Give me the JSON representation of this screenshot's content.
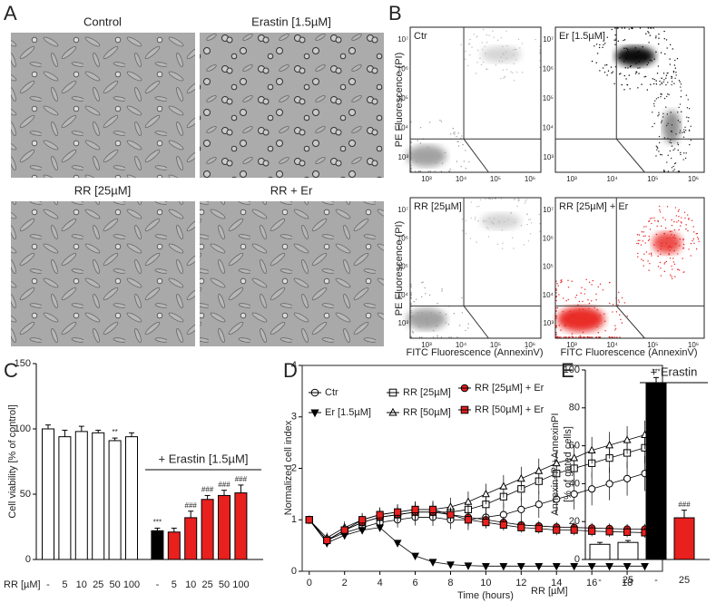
{
  "figure": {
    "panel_letters": [
      "A",
      "B",
      "C",
      "D",
      "E"
    ],
    "images": [
      {
        "title": "Control"
      },
      {
        "title": "Erastin [1.5µM]"
      },
      {
        "title": "RR [25µM]"
      },
      {
        "title": "RR + Er"
      }
    ],
    "flow": {
      "plots": [
        {
          "label": "Ctr"
        },
        {
          "label": "Er [1.5µM]"
        },
        {
          "label": "RR [25µM]"
        },
        {
          "label": "RR [25µM] + Er"
        }
      ],
      "ylabel": "PE Fluorescence (PI)",
      "xlabel": "FITC Fluorescence (AnnexinV)",
      "xticks": [
        "10³",
        "10⁴",
        "10⁵",
        "10⁶"
      ],
      "yticks": [
        "10⁷",
        "10⁶",
        "10⁵",
        "10⁴",
        "10³"
      ]
    }
  },
  "chart_data": [
    {
      "type": "bar",
      "ylabel": [
        "Cell viability [% of control]"
      ],
      "xlabel": "RR [µM]",
      "categories": [
        "-",
        "5",
        "10",
        "25",
        "50",
        "100",
        "-",
        "5",
        "10",
        "25",
        "50",
        "100"
      ],
      "values": [
        100,
        94,
        98,
        97,
        91,
        94,
        22,
        21,
        32,
        46,
        49,
        51
      ],
      "errors": [
        3,
        5,
        4,
        2,
        2,
        3,
        2,
        3,
        5,
        3,
        4,
        6
      ],
      "colors": [
        "#ffffff",
        "#ffffff",
        "#ffffff",
        "#ffffff",
        "#ffffff",
        "#ffffff",
        "#000000",
        "#e8201e",
        "#e8201e",
        "#e8201e",
        "#e8201e",
        "#e8201e"
      ],
      "significance": [
        null,
        null,
        null,
        null,
        "**",
        null,
        "***",
        null,
        "###",
        "###",
        "###",
        "###"
      ],
      "group_label": "+ Erastin [1.5µM]",
      "ylim": [
        0,
        150
      ],
      "yticks": [
        0,
        50,
        100,
        150
      ]
    },
    {
      "type": "line",
      "ylabel": [
        "Normalized cell index"
      ],
      "xlabel": "Time (hours)",
      "x": [
        0,
        1,
        2,
        3,
        4,
        5,
        6,
        7,
        8,
        9,
        10,
        11,
        12,
        13,
        14,
        15,
        16,
        17,
        18,
        19
      ],
      "series": [
        {
          "name": "Ctr",
          "marker": "circle",
          "color": "#ffffff",
          "values": [
            1,
            0.6,
            0.75,
            0.85,
            0.95,
            1.0,
            1.05,
            1.05,
            1.0,
            1.0,
            1.05,
            1.1,
            1.2,
            1.3,
            1.4,
            1.5,
            1.6,
            1.7,
            1.8,
            1.9
          ],
          "errors": [
            0,
            0.1,
            0.12,
            0.12,
            0.14,
            0.15,
            0.16,
            0.17,
            0.18,
            0.2,
            0.2,
            0.22,
            0.24,
            0.26,
            0.28,
            0.3,
            0.32,
            0.32,
            0.33,
            0.34
          ]
        },
        {
          "name": "Er [1.5µM]",
          "marker": "triangle-down",
          "color": "#000000",
          "values": [
            1,
            0.55,
            0.7,
            0.8,
            0.85,
            0.55,
            0.3,
            0.18,
            0.13,
            0.11,
            0.1,
            0.1,
            0.1,
            0.1,
            0.1,
            0.1,
            0.1,
            0.1,
            0.1,
            0.1
          ],
          "errors": [
            0,
            0.08,
            0.08,
            0.08,
            0.08,
            0.06,
            0.05,
            0.03,
            0.02,
            0.02,
            0.02,
            0.02,
            0.02,
            0.02,
            0.02,
            0.02,
            0.02,
            0.02,
            0.02,
            0.02
          ]
        },
        {
          "name": "RR [25µM]",
          "marker": "square",
          "color": "#ffffff",
          "values": [
            1,
            0.6,
            0.8,
            0.95,
            1.05,
            1.1,
            1.15,
            1.15,
            1.15,
            1.2,
            1.3,
            1.45,
            1.6,
            1.75,
            1.9,
            2.0,
            2.1,
            2.2,
            2.3,
            2.4
          ],
          "errors": [
            0,
            0.1,
            0.12,
            0.13,
            0.14,
            0.15,
            0.16,
            0.17,
            0.18,
            0.2,
            0.2,
            0.22,
            0.24,
            0.25,
            0.26,
            0.27,
            0.28,
            0.29,
            0.3,
            0.3
          ]
        },
        {
          "name": "RR [50µM]",
          "marker": "triangle-up",
          "color": "#ffffff",
          "values": [
            1,
            0.65,
            0.85,
            1.0,
            1.1,
            1.15,
            1.2,
            1.2,
            1.25,
            1.35,
            1.5,
            1.65,
            1.8,
            1.95,
            2.1,
            2.2,
            2.35,
            2.45,
            2.55,
            2.65
          ],
          "errors": [
            0,
            0.1,
            0.12,
            0.13,
            0.14,
            0.15,
            0.16,
            0.17,
            0.18,
            0.2,
            0.2,
            0.22,
            0.23,
            0.24,
            0.25,
            0.25,
            0.26,
            0.26,
            0.27,
            0.28
          ]
        },
        {
          "name": "RR [25µM] + Er",
          "marker": "circle",
          "color": "#e8201e",
          "values": [
            1,
            0.6,
            0.8,
            0.95,
            1.05,
            1.1,
            1.15,
            1.15,
            1.1,
            1.05,
            1.0,
            0.95,
            0.9,
            0.88,
            0.86,
            0.85,
            0.84,
            0.83,
            0.82,
            0.82
          ],
          "errors": [
            0,
            0.1,
            0.12,
            0.13,
            0.14,
            0.15,
            0.15,
            0.15,
            0.14,
            0.13,
            0.12,
            0.11,
            0.1,
            0.1,
            0.1,
            0.1,
            0.1,
            0.1,
            0.1,
            0.1
          ]
        },
        {
          "name": "RR [50µM] + Er",
          "marker": "square",
          "color": "#e8201e",
          "values": [
            1,
            0.6,
            0.8,
            1.0,
            1.1,
            1.15,
            1.2,
            1.2,
            1.1,
            1.0,
            0.95,
            0.9,
            0.85,
            0.83,
            0.8,
            0.8,
            0.78,
            0.77,
            0.76,
            0.75
          ],
          "errors": [
            0,
            0.1,
            0.12,
            0.13,
            0.14,
            0.15,
            0.15,
            0.15,
            0.14,
            0.13,
            0.12,
            0.11,
            0.1,
            0.1,
            0.1,
            0.1,
            0.1,
            0.1,
            0.1,
            0.1
          ]
        }
      ],
      "xlim": [
        -0.4,
        20
      ],
      "xticks": [
        0,
        2,
        4,
        6,
        8,
        10,
        12,
        14,
        16,
        18
      ],
      "ylim": [
        0,
        4
      ],
      "yticks": [
        0,
        1,
        2,
        3,
        4
      ]
    },
    {
      "type": "bar",
      "ylabel": [
        "Annexin+PI+AnnexinPI",
        "[% of gated cells]"
      ],
      "xlabel": "RR [µM]",
      "categories": [
        "-",
        "25",
        "-",
        "25"
      ],
      "values": [
        8,
        9,
        93,
        22
      ],
      "errors": [
        1,
        1,
        3,
        4
      ],
      "colors": [
        "#ffffff",
        "#ffffff",
        "#000000",
        "#e8201e"
      ],
      "significance": [
        null,
        null,
        "***",
        "###"
      ],
      "group_label": "+ Erastin",
      "ylim": [
        0,
        100
      ],
      "yticks": [
        0,
        20,
        40,
        60,
        80,
        100
      ]
    }
  ]
}
